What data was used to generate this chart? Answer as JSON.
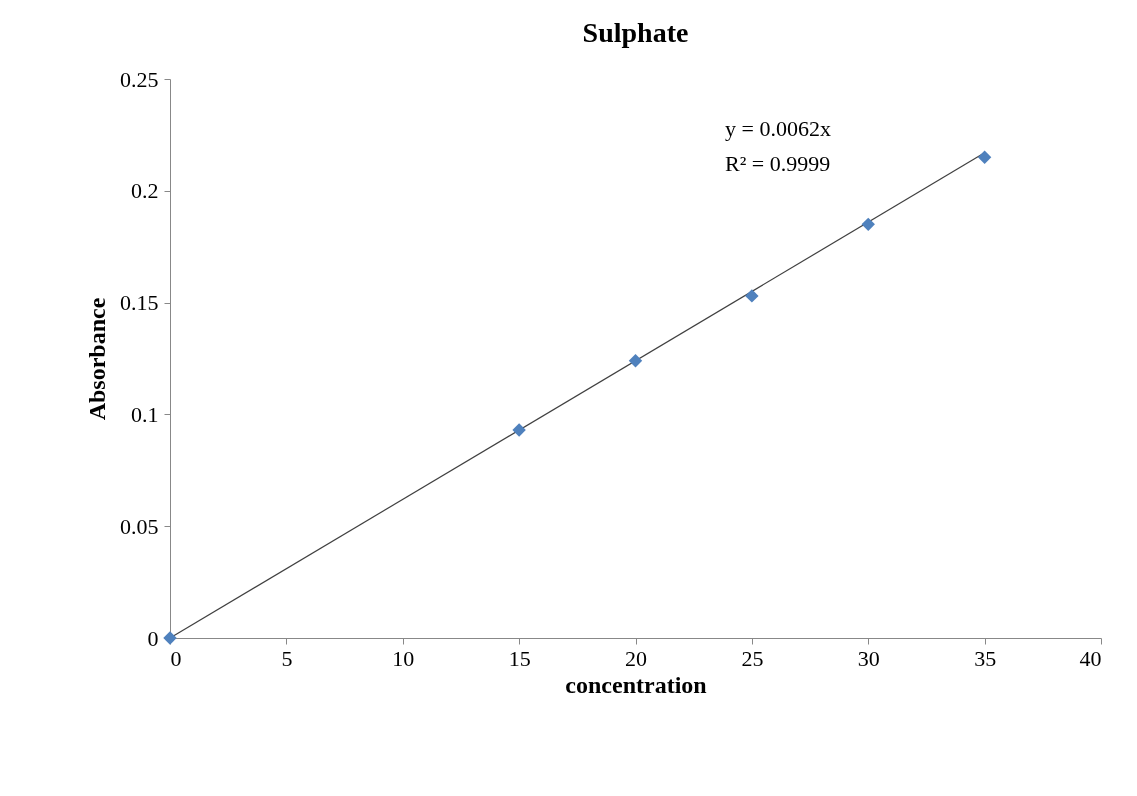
{
  "chart_data": {
    "type": "scatter",
    "title": "Sulphate",
    "xlabel": "concentration",
    "ylabel": "Absorbance",
    "x": [
      0,
      15,
      20,
      25,
      30,
      35
    ],
    "series": [
      {
        "color": "#4f81bd",
        "marker": "diamond",
        "values": [
          0,
          0.093,
          0.124,
          0.153,
          0.185,
          0.215
        ]
      },
      {
        "type": "line",
        "color": "#404040",
        "x": [
          0,
          35
        ],
        "values": [
          0,
          0.217
        ]
      }
    ],
    "xlim": [
      0,
      40
    ],
    "xticks": [
      0,
      5,
      10,
      15,
      20,
      25,
      30,
      35,
      40
    ],
    "ylim": [
      0,
      0.25
    ],
    "yticks": [
      0,
      0.05,
      0.1,
      0.15,
      0.2,
      0.25
    ],
    "annotations": [
      "y = 0.0062x",
      "R² = 0.9999"
    ],
    "line_style": "solid",
    "grid": false
  }
}
